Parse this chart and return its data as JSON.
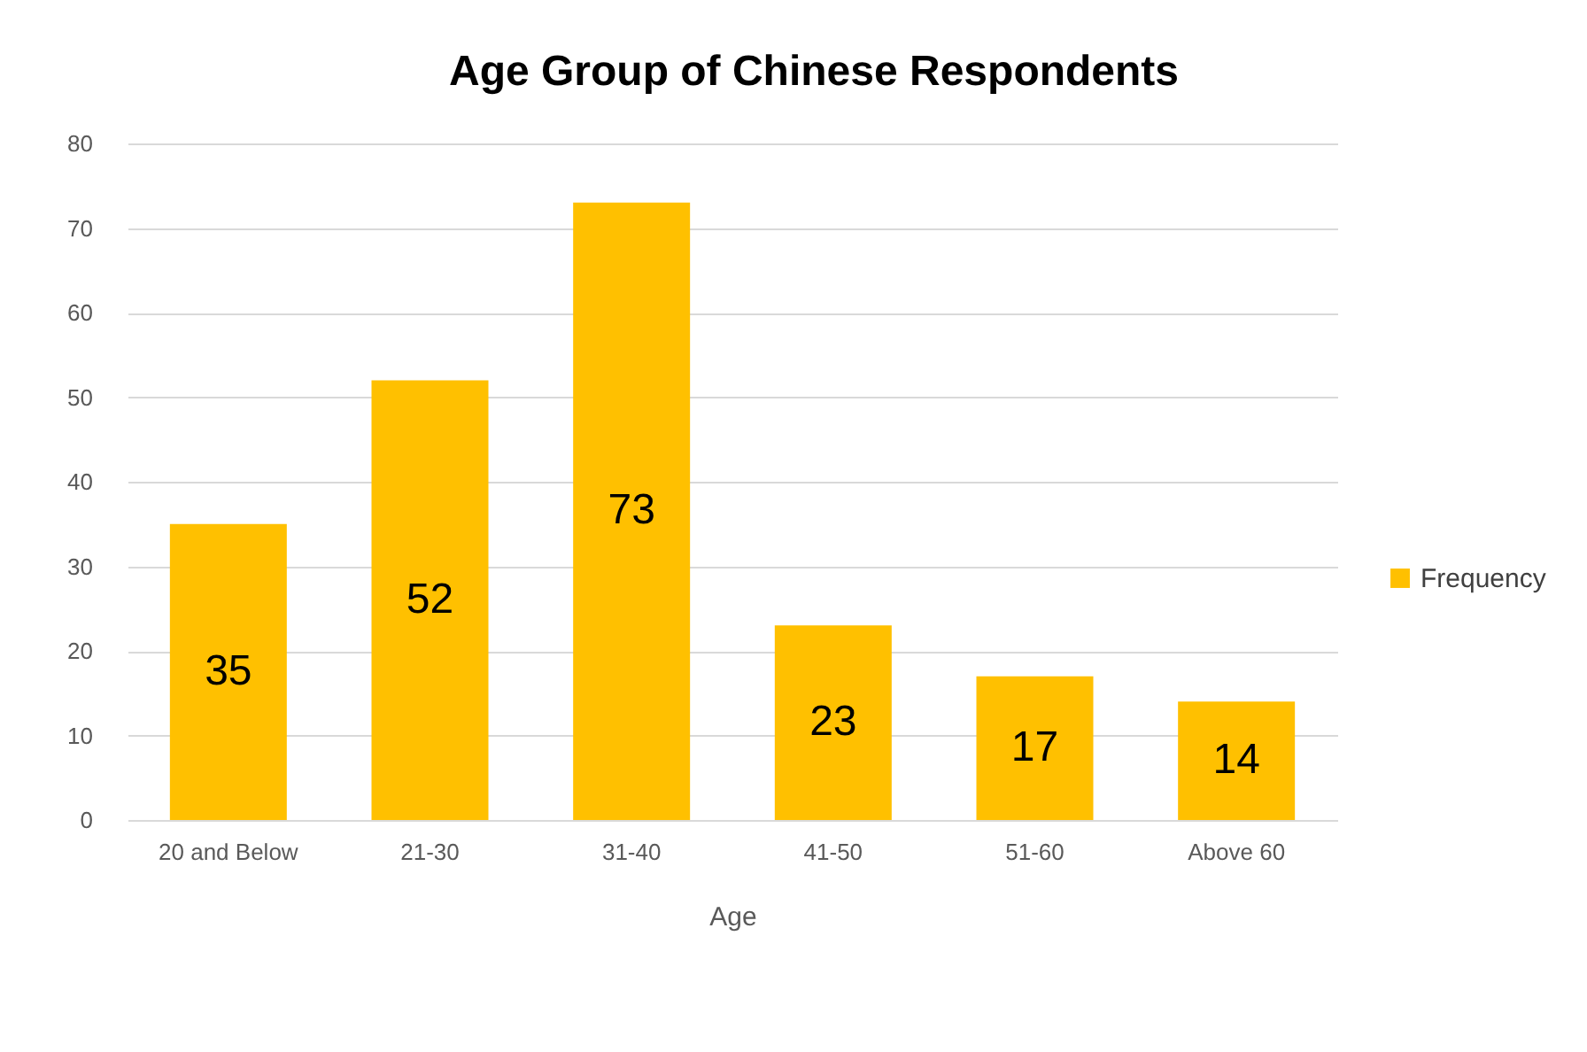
{
  "chart_data": {
    "type": "bar",
    "title": "Age Group of Chinese Respondents",
    "xlabel": "Age",
    "categories": [
      "20 and Below",
      "21-30",
      "31-40",
      "41-50",
      "51-60",
      "Above 60"
    ],
    "series": [
      {
        "name": "Frequency",
        "color": "#ffc000",
        "values": [
          35,
          52,
          73,
          23,
          17,
          14
        ]
      }
    ],
    "ylim": [
      0,
      80
    ],
    "yticks": [
      0,
      10,
      20,
      30,
      40,
      50,
      60,
      70,
      80
    ],
    "grid": "y",
    "legend": "right",
    "data_labels": true
  }
}
